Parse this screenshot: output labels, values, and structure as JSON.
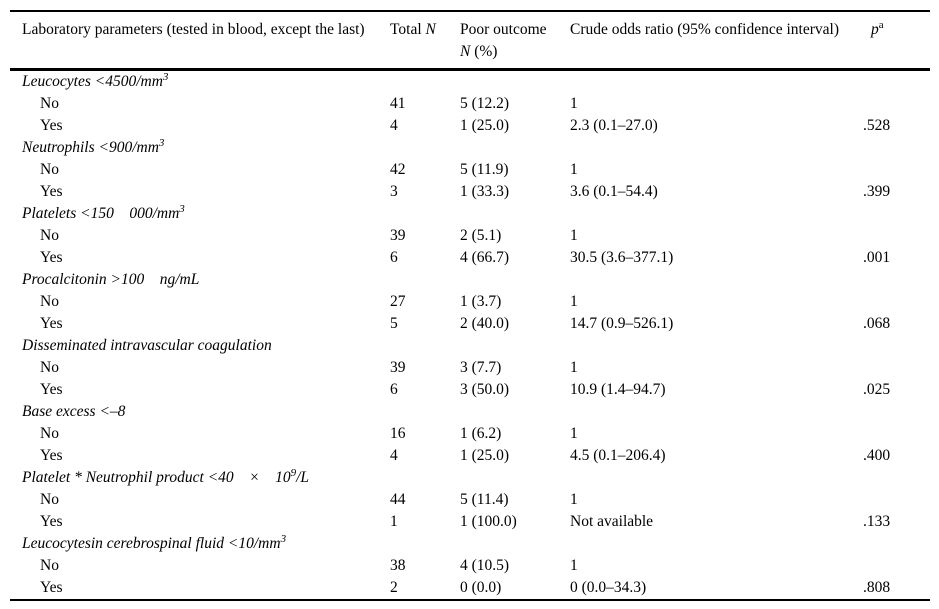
{
  "colors": {
    "text": "#000000",
    "rule": "#000000",
    "background": "#ffffff"
  },
  "table": {
    "header": {
      "col1": "Laboratory parameters (tested in blood, except the last)",
      "col2_prefix": "Total ",
      "col2_symbol": "N",
      "col3_line1": "Poor outcome",
      "col3_symbol": "N",
      "col3_rest": " (%)",
      "col4": "Crude odds ratio (95% confidence interval)",
      "col5_symbol": "p",
      "col5_sup": "a"
    },
    "groups": [
      {
        "name": {
          "pre": "Leucocytes <4500/mm",
          "sup": "3",
          "post": ""
        },
        "rows": [
          {
            "label": "No",
            "total": "41",
            "poor": "5 (12.2)",
            "or": "1",
            "p": ""
          },
          {
            "label": "Yes",
            "total": "4",
            "poor": "1 (25.0)",
            "or": "2.3 (0.1–27.0)",
            "p": ".528"
          }
        ]
      },
      {
        "name": {
          "pre": "Neutrophils <900/mm",
          "sup": "3",
          "post": ""
        },
        "rows": [
          {
            "label": "No",
            "total": "42",
            "poor": "5 (11.9)",
            "or": "1",
            "p": ""
          },
          {
            "label": "Yes",
            "total": "3",
            "poor": "1 (33.3)",
            "or": "3.6 (0.1–54.4)",
            "p": ".399"
          }
        ]
      },
      {
        "name": {
          "pre": "Platelets <150 000/mm",
          "sup": "3",
          "post": ""
        },
        "rows": [
          {
            "label": "No",
            "total": "39",
            "poor": "2 (5.1)",
            "or": "1",
            "p": ""
          },
          {
            "label": "Yes",
            "total": "6",
            "poor": "4 (66.7)",
            "or": "30.5 (3.6–377.1)",
            "p": ".001"
          }
        ]
      },
      {
        "name": {
          "pre": "Procalcitonin >100 ng/mL",
          "sup": "",
          "post": ""
        },
        "rows": [
          {
            "label": "No",
            "total": "27",
            "poor": "1 (3.7)",
            "or": "1",
            "p": ""
          },
          {
            "label": "Yes",
            "total": "5",
            "poor": "2 (40.0)",
            "or": "14.7 (0.9–526.1)",
            "p": ".068"
          }
        ]
      },
      {
        "name": {
          "pre": "Disseminated intravascular coagulation",
          "sup": "",
          "post": ""
        },
        "rows": [
          {
            "label": "No",
            "total": "39",
            "poor": "3 (7.7)",
            "or": "1",
            "p": ""
          },
          {
            "label": "Yes",
            "total": "6",
            "poor": "3 (50.0)",
            "or": "10.9 (1.4–94.7)",
            "p": ".025"
          }
        ]
      },
      {
        "name": {
          "pre": "Base excess <–8",
          "sup": "",
          "post": ""
        },
        "rows": [
          {
            "label": "No",
            "total": "16",
            "poor": "1 (6.2)",
            "or": "1",
            "p": ""
          },
          {
            "label": "Yes",
            "total": "4",
            "poor": "1 (25.0)",
            "or": "4.5 (0.1–206.4)",
            "p": ".400"
          }
        ]
      },
      {
        "name": {
          "pre": "Platelet * Neutrophil product <40 × 10",
          "sup": "9",
          "post": "/L"
        },
        "rows": [
          {
            "label": "No",
            "total": "44",
            "poor": "5 (11.4)",
            "or": "1",
            "p": ""
          },
          {
            "label": "Yes",
            "total": "1",
            "poor": "1 (100.0)",
            "or": "Not available",
            "p": ".133"
          }
        ]
      },
      {
        "name": {
          "pre": "Leucocytesin cerebrospinal fluid <10/mm",
          "sup": "3",
          "post": ""
        },
        "rows": [
          {
            "label": "No",
            "total": "38",
            "poor": "4 (10.5)",
            "or": "1",
            "p": ""
          },
          {
            "label": "Yes",
            "total": "2",
            "poor": "0 (0.0)",
            "or": "0 (0.0–34.3)",
            "p": ".808"
          }
        ]
      }
    ]
  }
}
